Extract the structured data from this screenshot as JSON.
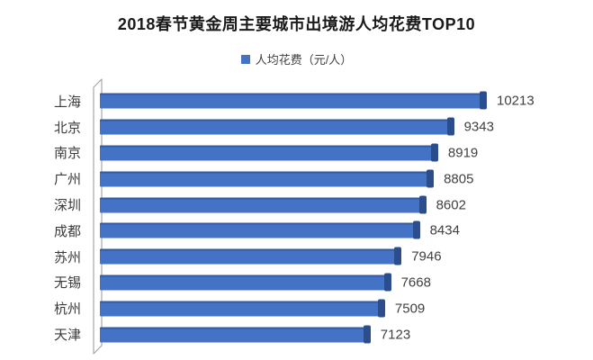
{
  "chart": {
    "title": "2018春节黄金周主要城市出境游人均花费TOP10",
    "legend": {
      "label": "人均花费（元/人）",
      "swatch_color": "#4472C4"
    }
  },
  "chart_data": {
    "type": "bar",
    "orientation": "horizontal",
    "style": "3d",
    "title": "2018春节黄金周主要城市出境游人均花费TOP10",
    "legend_entries": [
      "人均花费（元/人）"
    ],
    "legend_position": "top",
    "categories": [
      "上海",
      "北京",
      "南京",
      "广州",
      "深圳",
      "成都",
      "苏州",
      "无锡",
      "杭州",
      "天津"
    ],
    "values": [
      10213,
      9343,
      8919,
      8805,
      8602,
      8434,
      7946,
      7668,
      7509,
      7123
    ],
    "data_labels": true,
    "xlim": [
      0,
      12000
    ],
    "grid": false,
    "bar_color": "#4472C4",
    "bar_cap_color": "#2B4D8C",
    "wall_color": "#A6A6A6"
  }
}
